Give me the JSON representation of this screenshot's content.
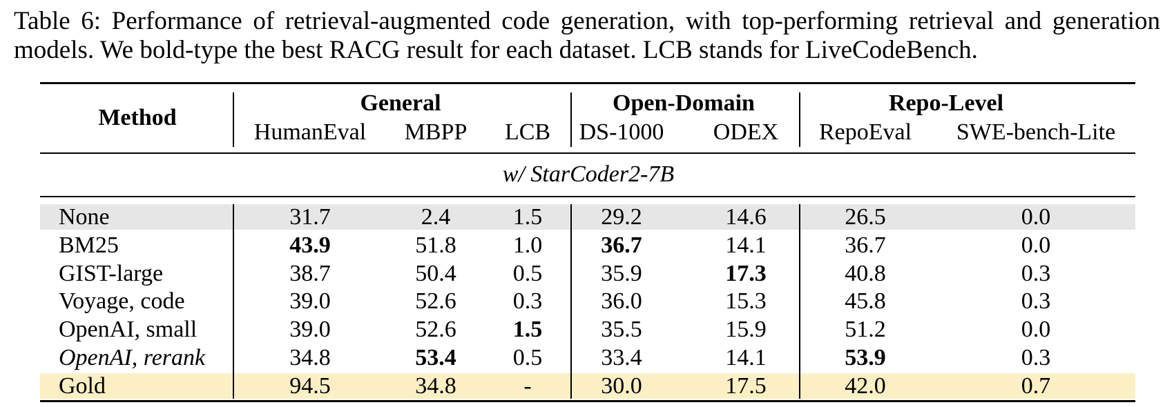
{
  "caption": "Table 6: Performance of retrieval-augmented code generation, with top-performing retrieval and generation models. We bold-type the best RACG result for each dataset. LCB stands for LiveCodeBench.",
  "header": {
    "method": "Method",
    "groups": [
      "General",
      "Open-Domain",
      "Repo-Level"
    ],
    "columns": [
      "HumanEval",
      "MBPP",
      "LCB",
      "DS-1000",
      "ODEX",
      "RepoEval",
      "SWE-bench-Lite"
    ]
  },
  "section_label": "w/ StarCoder2-7B",
  "colors": {
    "none_row": "#e6e6e6",
    "gold_row": "#fcefc4"
  },
  "rows": [
    {
      "method": "None",
      "italic": false,
      "values": [
        "31.7",
        "2.4",
        "1.5",
        "29.2",
        "14.6",
        "26.5",
        "0.0"
      ],
      "bold": []
    },
    {
      "method": "BM25",
      "italic": false,
      "values": [
        "43.9",
        "51.8",
        "1.0",
        "36.7",
        "14.1",
        "36.7",
        "0.0"
      ],
      "bold": [
        0,
        3
      ]
    },
    {
      "method": "GIST-large",
      "italic": false,
      "values": [
        "38.7",
        "50.4",
        "0.5",
        "35.9",
        "17.3",
        "40.8",
        "0.3"
      ],
      "bold": [
        4
      ]
    },
    {
      "method": "Voyage, code",
      "italic": false,
      "values": [
        "39.0",
        "52.6",
        "0.3",
        "36.0",
        "15.3",
        "45.8",
        "0.3"
      ],
      "bold": []
    },
    {
      "method": "OpenAI, small",
      "italic": false,
      "values": [
        "39.0",
        "52.6",
        "1.5",
        "35.5",
        "15.9",
        "51.2",
        "0.0"
      ],
      "bold": [
        2
      ]
    },
    {
      "method": "OpenAI, rerank",
      "italic": true,
      "values": [
        "34.8",
        "53.4",
        "0.5",
        "33.4",
        "14.1",
        "53.9",
        "0.3"
      ],
      "bold": [
        1,
        5
      ]
    },
    {
      "method": "Gold",
      "italic": false,
      "values": [
        "94.5",
        "34.8",
        "-",
        "30.0",
        "17.5",
        "42.0",
        "0.7"
      ],
      "bold": []
    }
  ]
}
